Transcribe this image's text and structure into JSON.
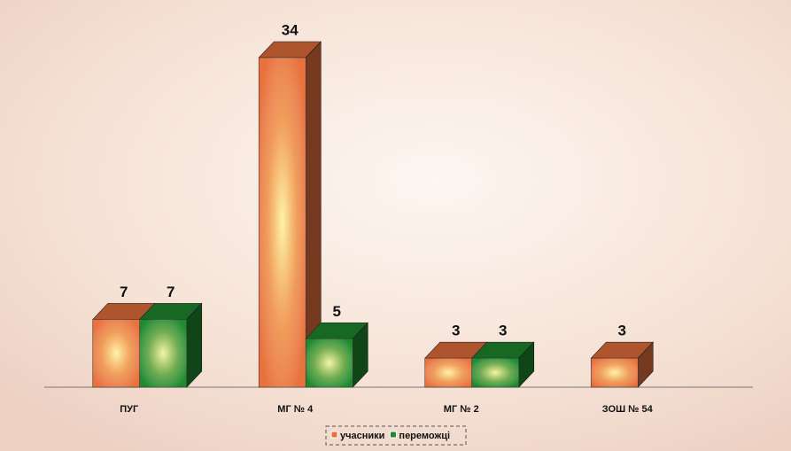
{
  "chart_data": {
    "type": "bar3d",
    "categories": [
      "ПУГ",
      "МГ № 4",
      "МГ № 2",
      "ЗОШ № 54"
    ],
    "series": [
      {
        "name": "учасники",
        "color": "#e8713c",
        "values": [
          7,
          34,
          3,
          3
        ]
      },
      {
        "name": "переможці",
        "color": "#1f8a2e",
        "values": [
          7,
          5,
          3,
          null
        ]
      }
    ]
  }
}
